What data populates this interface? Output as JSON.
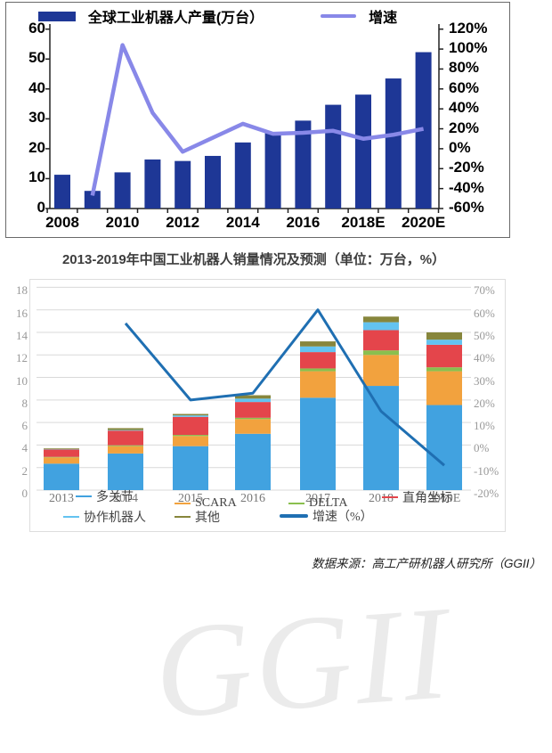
{
  "top_chart": {
    "legend": {
      "bars_label": "全球工业机器人产量(万台）",
      "line_label": "增速"
    },
    "chart_data": {
      "type": "bar+line",
      "categories": [
        "2008",
        "2009",
        "2010",
        "2011",
        "2012",
        "2013",
        "2014",
        "2015",
        "2016",
        "2017",
        "2018E",
        "2019E",
        "2020E"
      ],
      "x_tick_labels": [
        "2008",
        "2010",
        "2012",
        "2014",
        "2016",
        "2018E",
        "2020E"
      ],
      "series": [
        {
          "name": "全球工业机器人产量(万台）",
          "type": "bar",
          "color": "#1e3796",
          "axis": "left",
          "values": [
            11.3,
            5.9,
            12.1,
            16.4,
            15.9,
            17.6,
            22.1,
            25.4,
            29.4,
            34.7,
            38.1,
            43.5,
            52.3
          ]
        },
        {
          "name": "增速",
          "type": "line",
          "color": "#8888e8",
          "axis": "right",
          "values": [
            null,
            -47,
            104,
            36,
            -3,
            11,
            25,
            15,
            16,
            18,
            10,
            14,
            20
          ]
        }
      ],
      "left_axis": {
        "min": 0,
        "max": 60,
        "tick_labels_bottom_up": [
          "0",
          "10",
          "20",
          "30",
          "40",
          "50",
          "60"
        ]
      },
      "right_axis": {
        "min": -60,
        "max": 120,
        "tick_labels_top_down": [
          "120%",
          "100%",
          "80%",
          "60%",
          "40%",
          "20%",
          "0%",
          "-20%",
          "-40%",
          "-60%"
        ]
      },
      "grid": false
    }
  },
  "bottom_chart": {
    "title": "2013-2019年中国工业机器人销量情况及预测（单位：万台，%）",
    "watermark": "GGII",
    "chart_data": {
      "type": "stacked-bar+line",
      "categories": [
        "2013",
        "2014",
        "2015",
        "2016",
        "2017",
        "2018",
        "2019E"
      ],
      "series": [
        {
          "name": "多关节",
          "color": "#41a2e0",
          "values": [
            2.35,
            3.25,
            3.9,
            5.0,
            8.2,
            9.25,
            7.55
          ]
        },
        {
          "name": "SCARA",
          "color": "#f2a23e",
          "values": [
            0.55,
            0.65,
            0.9,
            1.3,
            2.35,
            2.75,
            3.0
          ]
        },
        {
          "name": "DELTA",
          "color": "#8abf4e",
          "values": [
            0.05,
            0.08,
            0.1,
            0.12,
            0.25,
            0.4,
            0.35
          ]
        },
        {
          "name": "直角坐标",
          "color": "#e4454b",
          "values": [
            0.65,
            1.3,
            1.6,
            1.4,
            1.45,
            1.8,
            2.0
          ]
        },
        {
          "name": "协作机器人",
          "color": "#63c3f0",
          "values": [
            0.03,
            0.05,
            0.13,
            0.3,
            0.5,
            0.7,
            0.45
          ]
        },
        {
          "name": "其他",
          "color": "#87863c",
          "values": [
            0.07,
            0.17,
            0.13,
            0.3,
            0.45,
            0.5,
            0.65
          ]
        }
      ],
      "line_series": {
        "name": "增速（%）",
        "color": "#1f6fb2",
        "values": [
          null,
          54,
          20,
          23,
          60,
          15,
          -9
        ]
      },
      "left_axis": {
        "min": 0,
        "max": 18,
        "tick_labels_top_down": [
          "18",
          "16",
          "14",
          "12",
          "10",
          "8",
          "6",
          "4",
          "2",
          "0"
        ]
      },
      "right_axis": {
        "min": -20,
        "max": 70,
        "tick_labels_top_down": [
          "70%",
          "60%",
          "50%",
          "40%",
          "30%",
          "20%",
          "10%",
          "0%",
          "-10%",
          "-20%"
        ]
      },
      "grid": true
    }
  },
  "source": "数据来源：高工产研机器人研究所（GGII）"
}
